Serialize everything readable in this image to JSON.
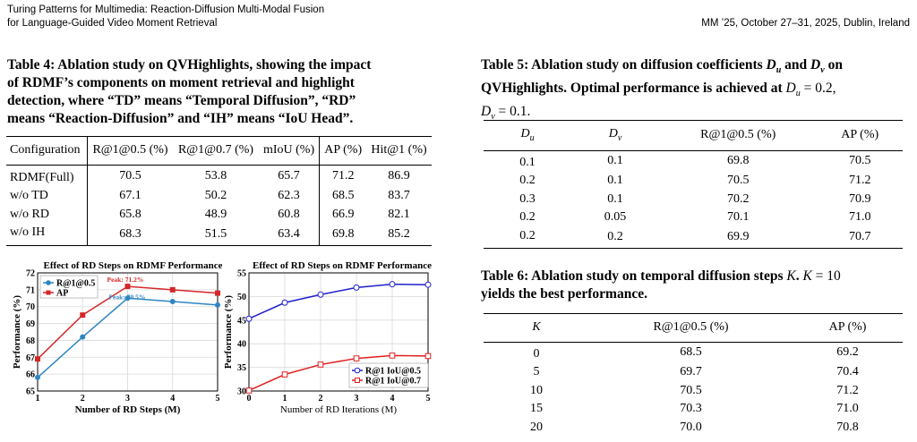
{
  "header": {
    "title_line1": "Turing Patterns for Multimedia: Reaction-Diffusion Multi-Modal Fusion",
    "title_line2": "for Language-Guided Video Moment Retrieval",
    "venue": "MM ’25, October 27–31, 2025, Dublin, Ireland"
  },
  "table4": {
    "caption_lines": [
      "Table 4: Ablation study on QVHighlights, showing the impact",
      "of RDMF’s components on moment retrieval and highlight",
      "detection, where “TD” means “Temporal Diffusion”, “RD”",
      "means “Reaction-Diffusion” and “IH” means “IoU Head”."
    ],
    "headers": [
      "Configuration",
      "R@1@0.5 (%)",
      "R@1@0.7 (%)",
      "mIoU (%)",
      "AP (%)",
      "Hit@1 (%)"
    ],
    "rows": [
      [
        "RDMF(Full)",
        "70.5",
        "53.8",
        "65.7",
        "71.2",
        "86.9"
      ],
      [
        "w/o TD",
        "67.1",
        "50.2",
        "62.3",
        "68.5",
        "83.7"
      ],
      [
        "w/o RD",
        "65.8",
        "48.9",
        "60.8",
        "66.9",
        "82.1"
      ],
      [
        "w/o IH",
        "68.3",
        "51.5",
        "63.4",
        "69.8",
        "85.2"
      ]
    ]
  },
  "table5": {
    "caption_line1_prefix": "Table 5: Ablation study on diffusion coefficients ",
    "caption_line1_du": "D",
    "caption_line1_du_sub": "u",
    "caption_line1_and": " and ",
    "caption_line1_dv": "D",
    "caption_line1_dv_sub": "v",
    "caption_line1_suffix": " on",
    "caption_line2": "QVHighlights. Optimal performance is achieved at ",
    "caption_line2_eq": "D",
    "caption_line2_eq_sub": "u",
    "caption_line2_val": " = 0.2,",
    "caption_line3_var": "D",
    "caption_line3_var_sub": "v",
    "caption_line3_val": " = 0.1.",
    "headers": [
      "D_u",
      "D_v",
      "R@1@0.5 (%)",
      "AP (%)"
    ],
    "rows": [
      [
        "0.1",
        "0.1",
        "69.8",
        "70.5"
      ],
      [
        "0.2",
        "0.1",
        "70.5",
        "71.2"
      ],
      [
        "0.3",
        "0.1",
        "70.2",
        "70.9"
      ],
      [
        "0.2",
        "0.05",
        "70.1",
        "71.0"
      ],
      [
        "0.2",
        "0.2",
        "69.9",
        "70.7"
      ]
    ]
  },
  "table6": {
    "caption_line1": "Table 6: Ablation study on temporal diffusion steps ",
    "caption_line1_k": "K",
    "caption_line1_mid": ". ",
    "caption_line1_k2": "K",
    "caption_line1_val": " = 10",
    "caption_line2": "yields the best performance.",
    "headers": [
      "K",
      "R@1@0.5 (%)",
      "AP (%)"
    ],
    "rows": [
      [
        "0",
        "68.5",
        "69.2"
      ],
      [
        "5",
        "69.7",
        "70.4"
      ],
      [
        "10",
        "70.5",
        "71.2"
      ],
      [
        "15",
        "70.3",
        "71.0"
      ],
      [
        "20",
        "70.0",
        "70.8"
      ]
    ]
  },
  "chart_data": [
    {
      "type": "line",
      "title": "Effect of RD Steps on RDMF Performance",
      "xlabel": "Number of RD Steps (M)",
      "ylabel": "Performance (%)",
      "x": [
        1,
        2,
        3,
        4,
        5
      ],
      "xlim": [
        1,
        5
      ],
      "ylim": [
        65,
        72
      ],
      "yticks": [
        65,
        66,
        67,
        68,
        69,
        70,
        71,
        72
      ],
      "grid": true,
      "legend": "top-left",
      "series": [
        {
          "name": "R@1@0.5",
          "values": [
            65.8,
            68.2,
            70.5,
            70.3,
            70.1
          ],
          "color": "#2e86c1",
          "marker": "circle"
        },
        {
          "name": "AP",
          "values": [
            66.9,
            69.5,
            71.2,
            71.0,
            70.8
          ],
          "color": "#d62728",
          "marker": "square"
        }
      ],
      "annotations": [
        {
          "text": "Peak: 71.2%",
          "color": "#d62728"
        },
        {
          "text": "Peak: 70.5%",
          "color": "#2e86c1"
        }
      ]
    },
    {
      "type": "line",
      "title": "Effect of RD Steps on RDMF Performance",
      "xlabel": "Number of RD Iterations (M)",
      "ylabel": "Performance (%)",
      "x": [
        0,
        1,
        2,
        3,
        4,
        5
      ],
      "xlim": [
        0,
        5
      ],
      "ylim": [
        30,
        55
      ],
      "yticks": [
        30,
        35,
        40,
        45,
        50,
        55
      ],
      "grid": true,
      "legend": "bottom-right",
      "series": [
        {
          "name": "R@1 IoU@0.5",
          "values": [
            45.3,
            48.7,
            50.4,
            51.9,
            52.6,
            52.5
          ],
          "color": "#1f1fcc",
          "marker": "circle-open"
        },
        {
          "name": "R@1 IoU@0.7",
          "values": [
            30.1,
            33.5,
            35.6,
            36.9,
            37.5,
            37.4
          ],
          "color": "#e02020",
          "marker": "square-open"
        }
      ]
    }
  ]
}
